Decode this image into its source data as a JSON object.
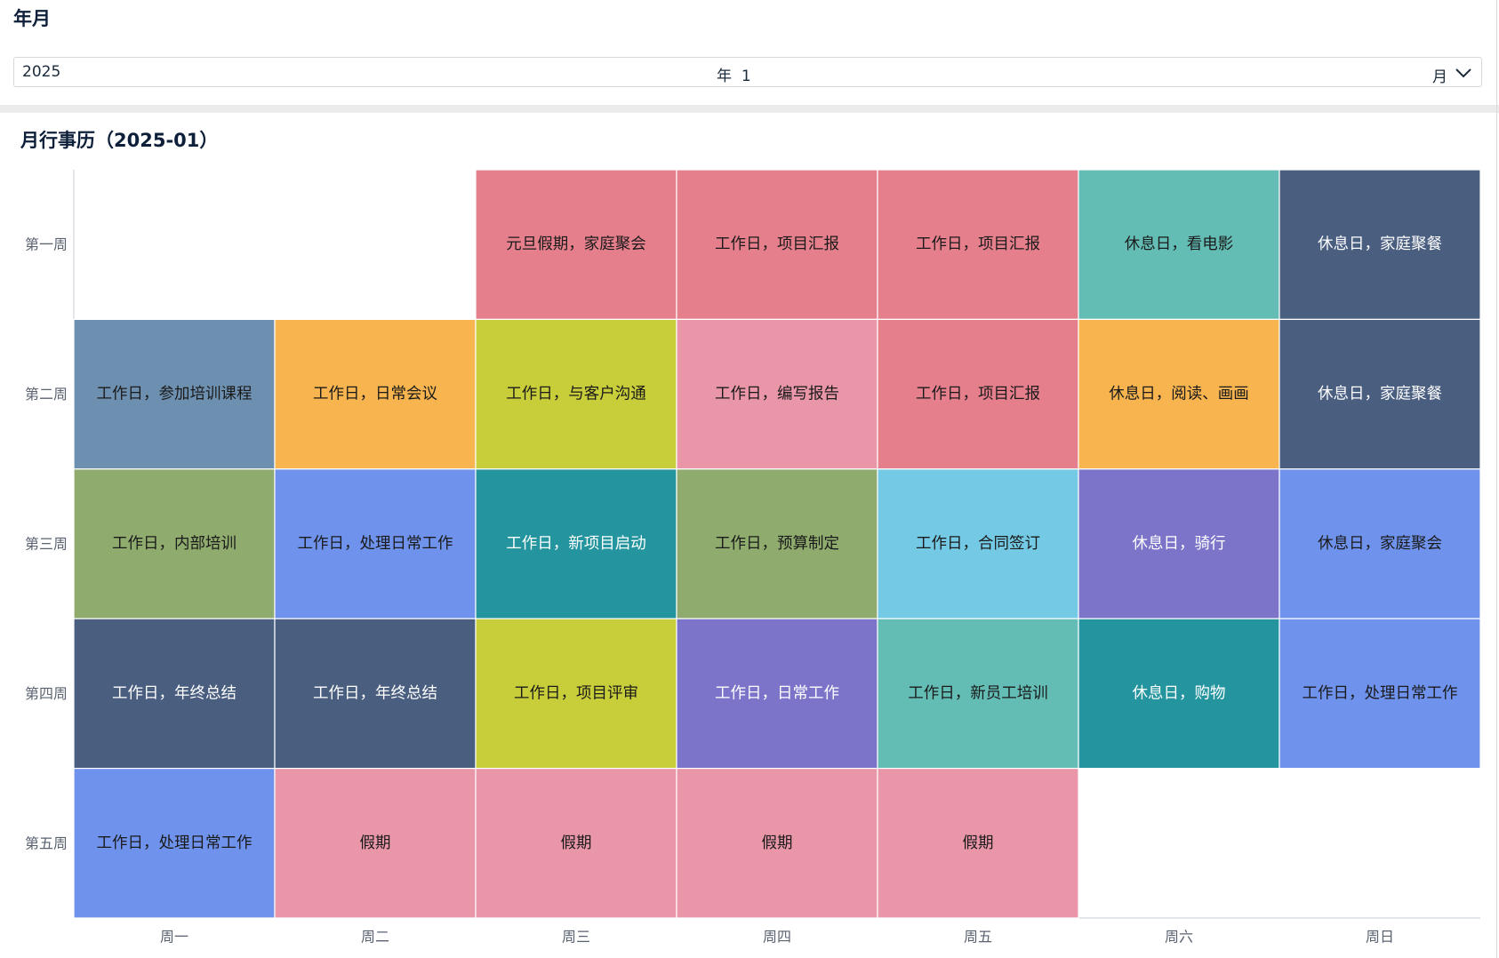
{
  "picker": {
    "title": "年月",
    "year": "2025",
    "year_unit": "年",
    "month": "1",
    "month_unit": "月"
  },
  "chart_data": {
    "type": "heatmap",
    "title": "月行事历（2025-01）",
    "x_categories": [
      "周一",
      "周二",
      "周三",
      "周四",
      "周五",
      "周六",
      "周日"
    ],
    "y_categories": [
      "第一周",
      "第二周",
      "第三周",
      "第四周",
      "第五周"
    ],
    "cells": [
      {
        "week": 0,
        "day": 2,
        "label": "元旦假期，家庭聚会",
        "color": "#e57f8c",
        "text_color": "#1a1a1a"
      },
      {
        "week": 0,
        "day": 3,
        "label": "工作日，项目汇报",
        "color": "#e57f8c",
        "text_color": "#1a1a1a"
      },
      {
        "week": 0,
        "day": 4,
        "label": "工作日，项目汇报",
        "color": "#e57f8c",
        "text_color": "#1a1a1a"
      },
      {
        "week": 0,
        "day": 5,
        "label": "休息日，看电影",
        "color": "#64bdb5",
        "text_color": "#1a1a1a"
      },
      {
        "week": 0,
        "day": 6,
        "label": "休息日，家庭聚餐",
        "color": "#4a5e80",
        "text_color": "#ffffff"
      },
      {
        "week": 1,
        "day": 0,
        "label": "工作日，参加培训课程",
        "color": "#6e90b0",
        "text_color": "#1a1a1a"
      },
      {
        "week": 1,
        "day": 1,
        "label": "工作日，日常会议",
        "color": "#f7b44f",
        "text_color": "#1a1a1a"
      },
      {
        "week": 1,
        "day": 2,
        "label": "工作日，与客户沟通",
        "color": "#c8cd3a",
        "text_color": "#1a1a1a"
      },
      {
        "week": 1,
        "day": 3,
        "label": "工作日，编写报告",
        "color": "#e896a8",
        "text_color": "#1a1a1a"
      },
      {
        "week": 1,
        "day": 4,
        "label": "工作日，项目汇报",
        "color": "#e57f8c",
        "text_color": "#1a1a1a"
      },
      {
        "week": 1,
        "day": 5,
        "label": "休息日，阅读、画画",
        "color": "#f7b44f",
        "text_color": "#1a1a1a"
      },
      {
        "week": 1,
        "day": 6,
        "label": "休息日，家庭聚餐",
        "color": "#4a5e80",
        "text_color": "#ffffff"
      },
      {
        "week": 2,
        "day": 0,
        "label": "工作日，内部培训",
        "color": "#8fac6e",
        "text_color": "#1a1a1a"
      },
      {
        "week": 2,
        "day": 1,
        "label": "工作日，处理日常工作",
        "color": "#6f93ec",
        "text_color": "#1a1a1a"
      },
      {
        "week": 2,
        "day": 2,
        "label": "工作日，新项目启动",
        "color": "#24949f",
        "text_color": "#ffffff"
      },
      {
        "week": 2,
        "day": 3,
        "label": "工作日，预算制定",
        "color": "#8fac6e",
        "text_color": "#1a1a1a"
      },
      {
        "week": 2,
        "day": 4,
        "label": "工作日，合同签订",
        "color": "#74c9e4",
        "text_color": "#1a1a1a"
      },
      {
        "week": 2,
        "day": 5,
        "label": "休息日，骑行",
        "color": "#7b74c8",
        "text_color": "#ffffff"
      },
      {
        "week": 2,
        "day": 6,
        "label": "休息日，家庭聚会",
        "color": "#6f93ec",
        "text_color": "#1a1a1a"
      },
      {
        "week": 3,
        "day": 0,
        "label": "工作日，年终总结",
        "color": "#4a5e80",
        "text_color": "#ffffff"
      },
      {
        "week": 3,
        "day": 1,
        "label": "工作日，年终总结",
        "color": "#4a5e80",
        "text_color": "#ffffff"
      },
      {
        "week": 3,
        "day": 2,
        "label": "工作日，项目评审",
        "color": "#c8cd3a",
        "text_color": "#1a1a1a"
      },
      {
        "week": 3,
        "day": 3,
        "label": "工作日，日常工作",
        "color": "#7b74c8",
        "text_color": "#ffffff"
      },
      {
        "week": 3,
        "day": 4,
        "label": "工作日，新员工培训",
        "color": "#64bdb5",
        "text_color": "#1a1a1a"
      },
      {
        "week": 3,
        "day": 5,
        "label": "休息日，购物",
        "color": "#24949f",
        "text_color": "#ffffff"
      },
      {
        "week": 3,
        "day": 6,
        "label": "工作日，处理日常工作",
        "color": "#6f93ec",
        "text_color": "#1a1a1a"
      },
      {
        "week": 4,
        "day": 0,
        "label": "工作日，处理日常工作",
        "color": "#6f93ec",
        "text_color": "#1a1a1a"
      },
      {
        "week": 4,
        "day": 1,
        "label": "假期",
        "color": "#e896a8",
        "text_color": "#1a1a1a"
      },
      {
        "week": 4,
        "day": 2,
        "label": "假期",
        "color": "#e896a8",
        "text_color": "#1a1a1a"
      },
      {
        "week": 4,
        "day": 3,
        "label": "假期",
        "color": "#e896a8",
        "text_color": "#1a1a1a"
      },
      {
        "week": 4,
        "day": 4,
        "label": "假期",
        "color": "#e896a8",
        "text_color": "#1a1a1a"
      }
    ]
  }
}
